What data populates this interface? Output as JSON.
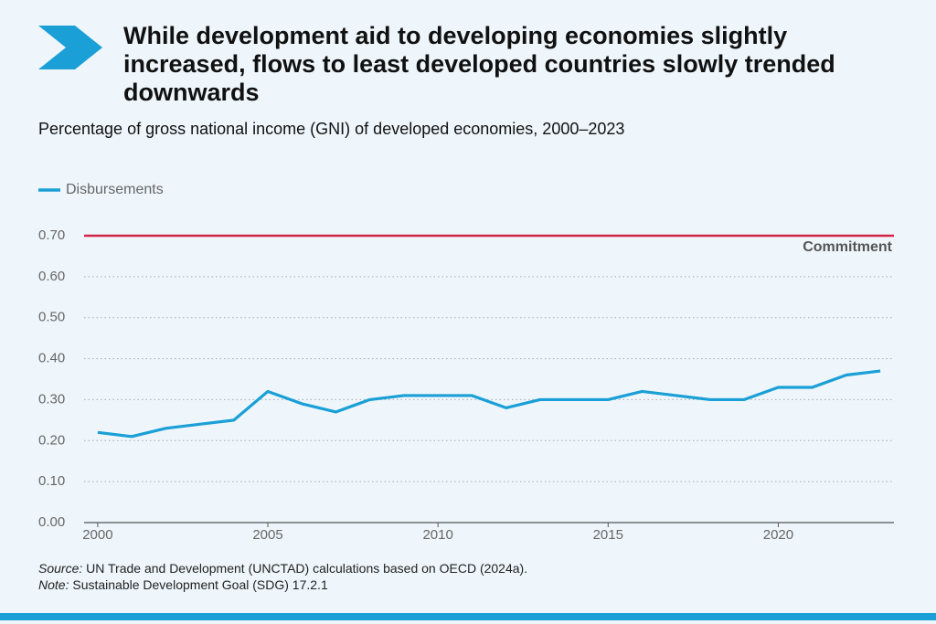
{
  "chart_data": {
    "type": "line",
    "title": "While development aid to developing economies slightly increased, flows to least developed countries slowly trended downwards",
    "subtitle": "Percentage of gross national income (GNI) of developed economies, 2000–2023",
    "x": [
      2000,
      2001,
      2002,
      2003,
      2004,
      2005,
      2006,
      2007,
      2008,
      2009,
      2010,
      2011,
      2012,
      2013,
      2014,
      2015,
      2016,
      2017,
      2018,
      2019,
      2020,
      2021,
      2022,
      2023
    ],
    "series": [
      {
        "name": "Disbursements",
        "color": "#1a9fd6",
        "values": [
          0.22,
          0.21,
          0.23,
          0.24,
          0.25,
          0.32,
          0.29,
          0.27,
          0.3,
          0.31,
          0.31,
          0.31,
          0.28,
          0.3,
          0.3,
          0.3,
          0.32,
          0.31,
          0.3,
          0.3,
          0.33,
          0.33,
          0.36,
          0.37
        ]
      }
    ],
    "xlim": [
      1999.6,
      2023.4
    ],
    "xticks": [
      2000,
      2005,
      2010,
      2015,
      2020
    ],
    "ylim": [
      0,
      0.7
    ],
    "yticks": [
      {
        "value": 0,
        "label": "0.00"
      },
      {
        "value": 0.1,
        "label": "0.10"
      },
      {
        "value": 0.2,
        "label": "0.20"
      },
      {
        "value": 0.3,
        "label": "0.30"
      },
      {
        "value": 0.4,
        "label": "0.40"
      },
      {
        "value": 0.5,
        "label": "0.50"
      },
      {
        "value": 0.6,
        "label": "0.60"
      },
      {
        "value": 0.7,
        "label": "0.70"
      }
    ],
    "grid": true,
    "reference_line": {
      "value": 0.7,
      "label": "Commitment",
      "color": "#d6234a"
    },
    "source_label": "Source:",
    "source": "UN Trade and Development (UNCTAD) calculations based on OECD (2024a).",
    "note_label": "Note:",
    "note": "Sustainable Development Goal (SDG) 17.2.1"
  }
}
